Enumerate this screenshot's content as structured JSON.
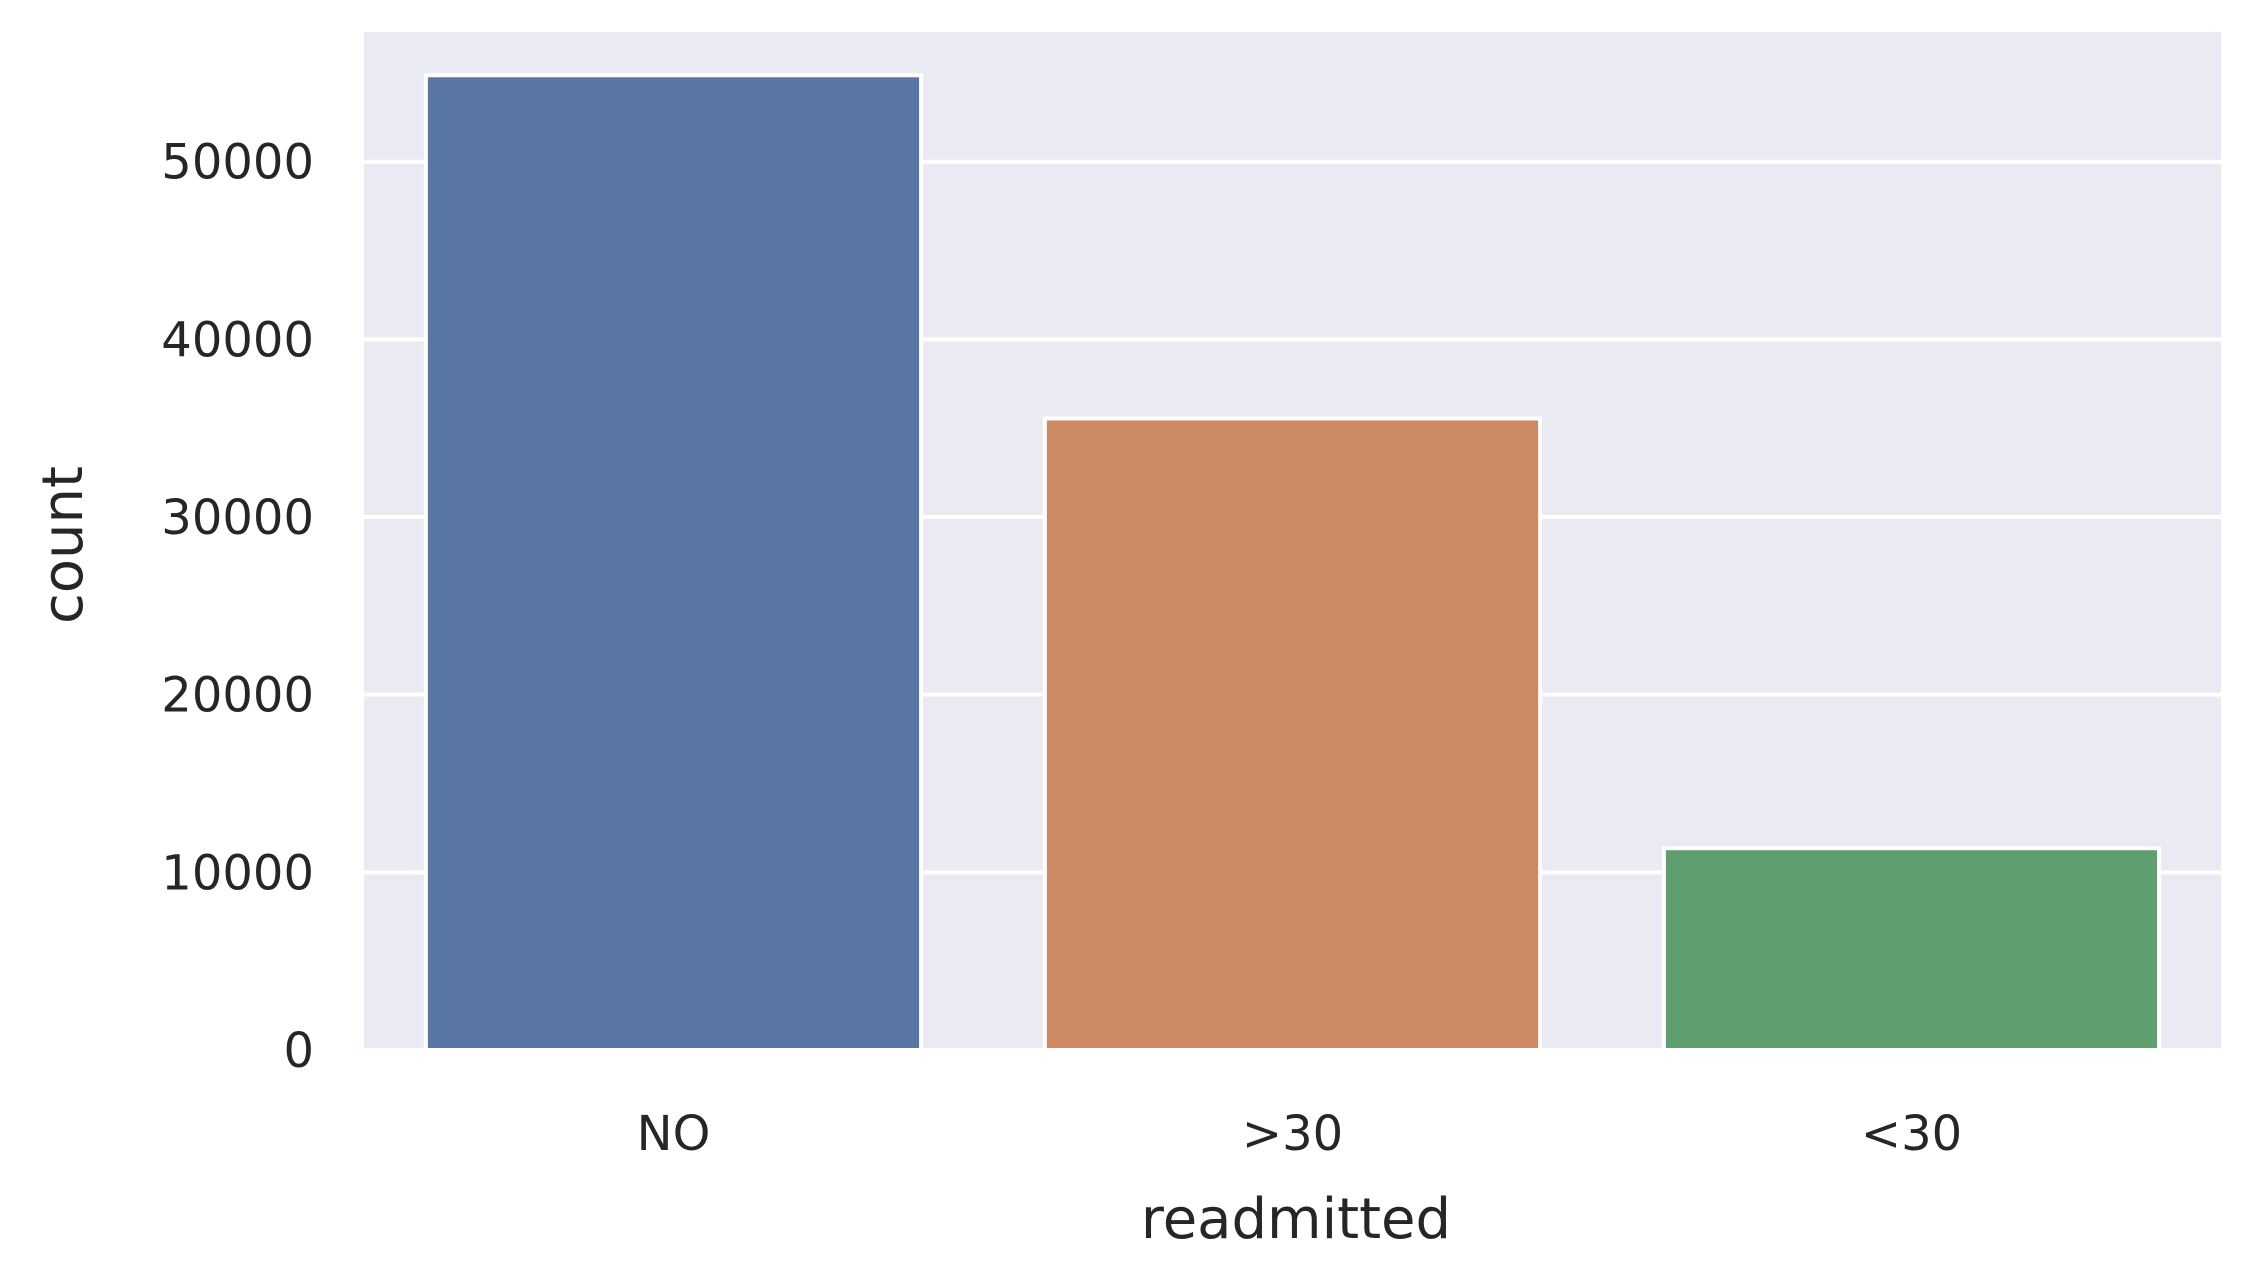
{
  "chart_data": {
    "type": "bar",
    "title": "",
    "xlabel": "readmitted",
    "ylabel": "count",
    "categories": [
      "NO",
      ">30",
      "<30"
    ],
    "values": [
      54864,
      35545,
      11357
    ],
    "ylim": [
      0,
      57300
    ],
    "yticks": [
      0,
      10000,
      20000,
      30000,
      40000,
      50000
    ],
    "grid": true,
    "legend": "none",
    "colors": {
      "background": "#EAEAF2",
      "grid": "#FFFFFF",
      "bars": [
        "#5975A4",
        "#CC8963",
        "#5F9E6E"
      ],
      "text": "#262626"
    }
  }
}
